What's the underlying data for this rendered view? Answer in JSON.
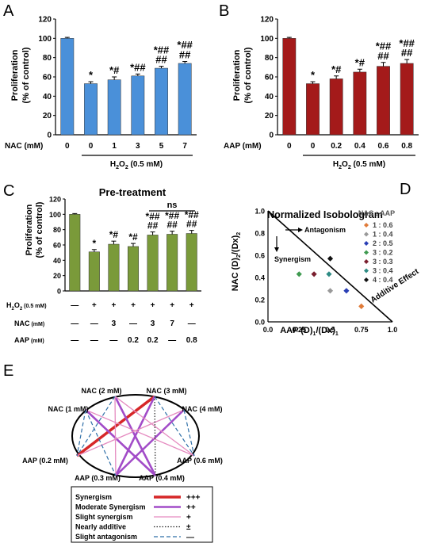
{
  "panels": {
    "A": {
      "letter": "A",
      "ylabel_line1": "Proliferation",
      "ylabel_line2": "(% of control)",
      "row_label": "NAC (mM)",
      "row_values": [
        "0",
        "0",
        "1",
        "3",
        "5",
        "7"
      ],
      "bracket_label": "H2O2 (0.5 mM)",
      "bracket_text": {
        "pre": "H",
        "sub1": "2",
        "mid": "O",
        "sub2": "2",
        "post": " (0.5 mM)"
      }
    },
    "B": {
      "letter": "B",
      "ylabel_line1": "Proliferation",
      "ylabel_line2": "(% of control)",
      "row_label": "AAP (mM)",
      "row_values": [
        "0",
        "0",
        "0.2",
        "0.4",
        "0.6",
        "0.8"
      ],
      "bracket_text": {
        "pre": "H",
        "sub1": "2",
        "mid": "O",
        "sub2": "2",
        "post": " (0.5 mM)"
      }
    },
    "C": {
      "letter": "C",
      "title": "Pre-treatment",
      "ylabel_line1": "Proliferation",
      "ylabel_line2": "(% of control)",
      "ns_label": "ns",
      "rows": [
        {
          "label_main": "H",
          "sub1": "2",
          "mid": "O",
          "sub2": "2",
          "unit": " (0.5 mM)",
          "values": [
            "—",
            "+",
            "+",
            "+",
            "+",
            "+",
            "+"
          ]
        },
        {
          "label_main": "NAC",
          "unit": " (mM)",
          "values": [
            "—",
            "—",
            "3",
            "—",
            "3",
            "7",
            "—"
          ]
        },
        {
          "label_main": "AAP",
          "unit": " (mM)",
          "values": [
            "—",
            "—",
            "—",
            "0.2",
            "0.2",
            "—",
            "0.8"
          ]
        }
      ]
    },
    "D": {
      "letter": "D",
      "title": "Normalized Isobologram",
      "xlabel": "AAP  (D)1/(Dx)1",
      "ylabel": "NAC  (D)2/(Dx)2",
      "annotations": {
        "antagonism": "Antagonism",
        "synergism": "Synergism",
        "additive": "Additive Effect"
      },
      "legend_title": "NAC : AAP",
      "legend": [
        {
          "label": "1 : 0.6",
          "color": "#e07b39"
        },
        {
          "label": "1 : 0.4",
          "color": "#999999"
        },
        {
          "label": "2 : 0.5",
          "color": "#2a3fb5"
        },
        {
          "label": "3 : 0.2",
          "color": "#3f9a50"
        },
        {
          "label": "3 : 0.3",
          "color": "#7a1f2e"
        },
        {
          "label": "3 : 0.4",
          "color": "#2e8b84"
        },
        {
          "label": "4 : 0.4",
          "color": "#111111"
        }
      ]
    },
    "E": {
      "letter": "E",
      "nodes": [
        "NAC (1 mM)",
        "NAC (2 mM)",
        "NAC (3 mM)",
        "NAC (4 mM)",
        "AAP (0.6 mM)",
        "AAP (0.4 mM)",
        "AAP (0.3 mM)",
        "AAP (0.2 mM)"
      ],
      "legend": [
        {
          "label": "Synergism",
          "symbol": "+++",
          "color": "#d62728",
          "style": "thick"
        },
        {
          "label": "Moderate Synergism",
          "symbol": "++",
          "color": "#a24cc8",
          "style": "medium"
        },
        {
          "label": "Slight synergism",
          "symbol": "+",
          "color": "#e58bc0",
          "style": "thin"
        },
        {
          "label": "Nearly additive",
          "symbol": "±",
          "color": "#222222",
          "style": "dotted"
        },
        {
          "label": "Slight antagonism",
          "symbol": "—",
          "color": "#2f6fa8",
          "style": "dashed"
        }
      ]
    }
  },
  "chart_data": [
    {
      "panel": "A",
      "type": "bar",
      "categories": [
        "0",
        "0",
        "1",
        "3",
        "5",
        "7"
      ],
      "values": [
        100,
        53,
        57,
        61,
        69,
        74
      ],
      "errors": [
        1,
        2,
        3,
        2,
        2,
        2
      ],
      "marks": [
        "",
        "*",
        "*#",
        "*##",
        "*##\n##",
        "*##\n##"
      ],
      "color": "#4a90d9",
      "ylim": [
        0,
        120
      ],
      "yticks": [
        0,
        20,
        40,
        60,
        80,
        100,
        120
      ]
    },
    {
      "panel": "B",
      "type": "bar",
      "categories": [
        "0",
        "0",
        "0.2",
        "0.4",
        "0.6",
        "0.8"
      ],
      "values": [
        100,
        53,
        58,
        65,
        71,
        74
      ],
      "errors": [
        1,
        2,
        3,
        3,
        4,
        4
      ],
      "marks": [
        "",
        "*",
        "*#",
        "*#",
        "*##\n##",
        "*##\n##"
      ],
      "color": "#a41a1a",
      "ylim": [
        0,
        120
      ],
      "yticks": [
        0,
        20,
        40,
        60,
        80,
        100,
        120
      ]
    },
    {
      "panel": "C",
      "type": "bar",
      "categories": [
        "ctrl",
        "H2O2",
        "NAC 3",
        "AAP 0.2",
        "NAC 3 + AAP 0.2",
        "NAC 7",
        "AAP 0.8"
      ],
      "values": [
        100,
        51,
        61,
        58,
        73,
        74,
        75
      ],
      "errors": [
        1,
        3,
        4,
        4,
        4,
        4,
        4
      ],
      "marks": [
        "",
        "*",
        "*#",
        "*#",
        "*##\n##",
        "*##\n##",
        "*##\n##"
      ],
      "color": "#7a9a3a",
      "ylim": [
        0,
        120
      ],
      "yticks": [
        0,
        20,
        40,
        60,
        80,
        100,
        120
      ]
    },
    {
      "panel": "D",
      "type": "scatter",
      "title": "Normalized Isobologram",
      "xlabel": "AAP (D)1/(Dx)1",
      "ylabel": "NAC (D)2/(Dx)2",
      "xlim": [
        0,
        1
      ],
      "ylim": [
        0,
        1
      ],
      "xticks": [
        0,
        0.25,
        0.5,
        0.75,
        1
      ],
      "yticks": [
        0,
        0.2,
        0.4,
        0.6,
        0.8,
        1
      ],
      "additive_line": [
        [
          0,
          1
        ],
        [
          1,
          0
        ]
      ],
      "points": [
        {
          "label": "1 : 0.6",
          "x": 0.75,
          "y": 0.14
        },
        {
          "label": "1 : 0.4",
          "x": 0.5,
          "y": 0.28
        },
        {
          "label": "2 : 0.5",
          "x": 0.63,
          "y": 0.28
        },
        {
          "label": "3 : 0.2",
          "x": 0.25,
          "y": 0.43
        },
        {
          "label": "3 : 0.3",
          "x": 0.37,
          "y": 0.43
        },
        {
          "label": "3 : 0.4",
          "x": 0.49,
          "y": 0.43
        },
        {
          "label": "4 : 0.4",
          "x": 0.5,
          "y": 0.57
        }
      ]
    },
    {
      "panel": "E",
      "type": "network",
      "edges": [
        {
          "from": "NAC (3 mM)",
          "to": "AAP (0.2 mM)",
          "type": "Synergism"
        },
        {
          "from": "NAC (1 mM)",
          "to": "AAP (0.4 mM)",
          "type": "Moderate Synergism"
        },
        {
          "from": "NAC (2 mM)",
          "to": "AAP (0.4 mM)",
          "type": "Moderate Synergism"
        },
        {
          "from": "NAC (3 mM)",
          "to": "AAP (0.3 mM)",
          "type": "Moderate Synergism"
        },
        {
          "from": "NAC (4 mM)",
          "to": "AAP (0.3 mM)",
          "type": "Moderate Synergism"
        },
        {
          "from": "NAC (1 mM)",
          "to": "AAP (0.6 mM)",
          "type": "Slight synergism"
        },
        {
          "from": "NAC (2 mM)",
          "to": "AAP (0.6 mM)",
          "type": "Slight synergism"
        },
        {
          "from": "NAC (4 mM)",
          "to": "AAP (0.2 mM)",
          "type": "Slight synergism"
        },
        {
          "from": "NAC (2 mM)",
          "to": "AAP (0.3 mM)",
          "type": "Slight synergism"
        },
        {
          "from": "NAC (3 mM)",
          "to": "AAP (0.4 mM)",
          "type": "Nearly additive"
        },
        {
          "from": "NAC (1 mM)",
          "to": "AAP (0.2 mM)",
          "type": "Slight antagonism"
        },
        {
          "from": "NAC (2 mM)",
          "to": "AAP (0.2 mM)",
          "type": "Slight antagonism"
        },
        {
          "from": "NAC (4 mM)",
          "to": "AAP (0.6 mM)",
          "type": "Slight antagonism"
        },
        {
          "from": "NAC (3 mM)",
          "to": "AAP (0.6 mM)",
          "type": "Slight antagonism"
        },
        {
          "from": "NAC (1 mM)",
          "to": "AAP (0.3 mM)",
          "type": "Slight antagonism"
        }
      ]
    }
  ]
}
